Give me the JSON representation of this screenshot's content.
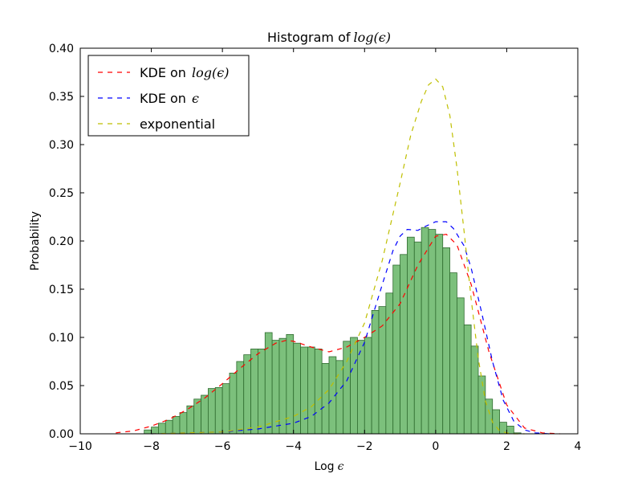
{
  "chart_data": {
    "type": "bar",
    "title": "Histogram of",
    "title_math": "log(ϵ)",
    "xlabel": "Log",
    "xlabel_math": "ϵ",
    "ylabel": "Probability",
    "xlim": [
      -10,
      4
    ],
    "ylim": [
      0,
      0.4
    ],
    "xticks": [
      -10,
      -8,
      -6,
      -4,
      -2,
      0,
      2,
      4
    ],
    "xtick_labels": [
      "−10",
      "−8",
      "−6",
      "−4",
      "−2",
      "0",
      "2",
      "4"
    ],
    "yticks": [
      0,
      0.05,
      0.1,
      0.15,
      0.2,
      0.25,
      0.3,
      0.35,
      0.4
    ],
    "ytick_labels": [
      "0.00",
      "0.05",
      "0.10",
      "0.15",
      "0.20",
      "0.25",
      "0.30",
      "0.35",
      "0.40"
    ],
    "grid": false,
    "legend_position": "top-left",
    "bar_color": "#7cc07c",
    "bar_edge": "#2f6b2f",
    "histogram": {
      "bin_width": 0.2,
      "x_left": [
        -8.2,
        -8.0,
        -7.8,
        -7.6,
        -7.4,
        -7.2,
        -7.0,
        -6.8,
        -6.6,
        -6.4,
        -6.2,
        -6.0,
        -5.8,
        -5.6,
        -5.4,
        -5.2,
        -5.0,
        -4.8,
        -4.6,
        -4.4,
        -4.2,
        -4.0,
        -3.8,
        -3.6,
        -3.4,
        -3.2,
        -3.0,
        -2.8,
        -2.6,
        -2.4,
        -2.2,
        -2.0,
        -1.8,
        -1.6,
        -1.4,
        -1.2,
        -1.0,
        -0.8,
        -0.6,
        -0.4,
        -0.2,
        0.0,
        0.2,
        0.4,
        0.6,
        0.8,
        1.0,
        1.2,
        1.4,
        1.6,
        1.8,
        2.0,
        2.2
      ],
      "values": [
        0.004,
        0.007,
        0.011,
        0.014,
        0.018,
        0.022,
        0.029,
        0.036,
        0.04,
        0.047,
        0.048,
        0.052,
        0.063,
        0.075,
        0.082,
        0.088,
        0.088,
        0.105,
        0.097,
        0.099,
        0.103,
        0.094,
        0.09,
        0.09,
        0.088,
        0.073,
        0.08,
        0.076,
        0.096,
        0.1,
        0.097,
        0.1,
        0.128,
        0.132,
        0.146,
        0.175,
        0.186,
        0.204,
        0.199,
        0.214,
        0.212,
        0.207,
        0.193,
        0.167,
        0.141,
        0.113,
        0.091,
        0.06,
        0.036,
        0.025,
        0.012,
        0.008,
        0.001
      ]
    },
    "series": [
      {
        "name": "KDE on ",
        "name_math": "log(ϵ)",
        "color": "#ff0000",
        "dash": "dashed",
        "x": [
          -9.0,
          -8.5,
          -8.0,
          -7.5,
          -7.0,
          -6.5,
          -6.0,
          -5.5,
          -5.0,
          -4.5,
          -4.2,
          -4.0,
          -3.5,
          -3.0,
          -2.5,
          -2.0,
          -1.5,
          -1.0,
          -0.5,
          0.0,
          0.3,
          0.6,
          1.0,
          1.5,
          2.0,
          2.5,
          3.0,
          3.5
        ],
        "values": [
          0.001,
          0.003,
          0.008,
          0.015,
          0.025,
          0.037,
          0.052,
          0.068,
          0.083,
          0.094,
          0.097,
          0.096,
          0.09,
          0.085,
          0.09,
          0.1,
          0.112,
          0.135,
          0.175,
          0.205,
          0.207,
          0.196,
          0.155,
          0.085,
          0.03,
          0.006,
          0.001,
          0.0
        ]
      },
      {
        "name": "KDE on ",
        "name_math": "ϵ",
        "color": "#0000ff",
        "dash": "dashed",
        "x": [
          -8.0,
          -6.0,
          -5.0,
          -4.0,
          -3.5,
          -3.0,
          -2.5,
          -2.0,
          -1.5,
          -1.2,
          -1.0,
          -0.8,
          -0.5,
          -0.3,
          0.0,
          0.3,
          0.5,
          0.8,
          1.0,
          1.3,
          1.6,
          1.9,
          2.2,
          2.5,
          2.8,
          3.2
        ],
        "values": [
          0.0,
          0.002,
          0.005,
          0.011,
          0.018,
          0.032,
          0.055,
          0.095,
          0.155,
          0.19,
          0.205,
          0.212,
          0.211,
          0.215,
          0.22,
          0.22,
          0.213,
          0.195,
          0.172,
          0.125,
          0.075,
          0.035,
          0.013,
          0.004,
          0.001,
          0.0
        ]
      },
      {
        "name": "exponential",
        "color": "#bfbf00",
        "dash": "dashed",
        "x": [
          -8.0,
          -6.0,
          -5.0,
          -4.0,
          -3.5,
          -3.0,
          -2.5,
          -2.0,
          -1.5,
          -1.0,
          -0.7,
          -0.4,
          -0.2,
          0.0,
          0.2,
          0.4,
          0.6,
          0.8,
          1.0,
          1.2,
          1.4,
          1.6,
          1.8,
          2.0,
          2.2,
          2.5
        ],
        "values": [
          0.0,
          0.002,
          0.007,
          0.018,
          0.028,
          0.046,
          0.075,
          0.115,
          0.18,
          0.26,
          0.31,
          0.345,
          0.362,
          0.368,
          0.36,
          0.33,
          0.276,
          0.21,
          0.14,
          0.078,
          0.034,
          0.012,
          0.003,
          0.001,
          0.0,
          0.0
        ]
      }
    ]
  }
}
